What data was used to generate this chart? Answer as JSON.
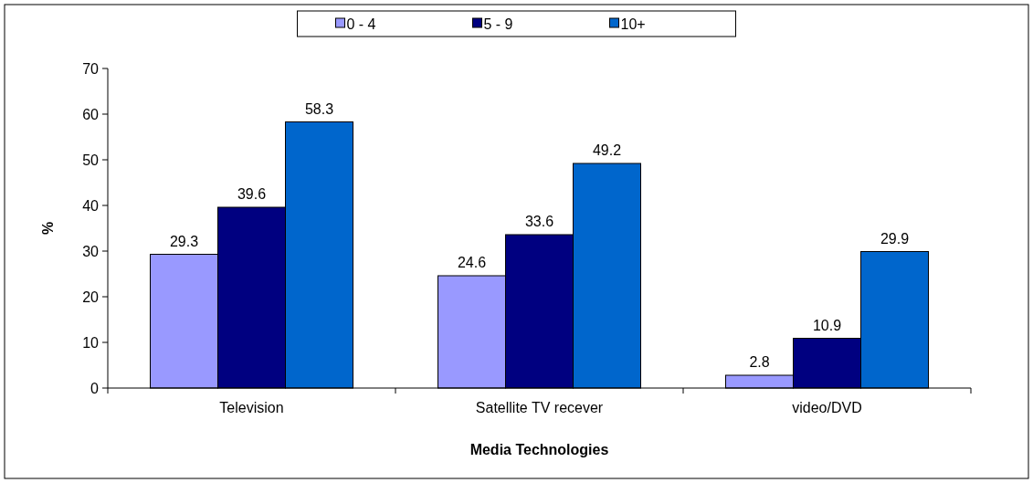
{
  "chart_data": {
    "type": "bar",
    "categories": [
      "Television",
      "Satellite TV recever",
      "video/DVD"
    ],
    "series": [
      {
        "name": "0 - 4",
        "color": "#9999ff",
        "values": [
          29.3,
          24.6,
          2.8
        ]
      },
      {
        "name": "5 - 9",
        "color": "#000080",
        "values": [
          39.6,
          33.6,
          10.9
        ]
      },
      {
        "name": "10+",
        "color": "#0066cc",
        "values": [
          58.3,
          49.2,
          29.9
        ]
      }
    ],
    "xlabel": "Media Technologies",
    "ylabel": "%",
    "ylim": [
      0,
      70
    ],
    "yticks": [
      0,
      10,
      20,
      30,
      40,
      50,
      60,
      70
    ],
    "data_labels": true,
    "legend": "top",
    "grid": false
  }
}
